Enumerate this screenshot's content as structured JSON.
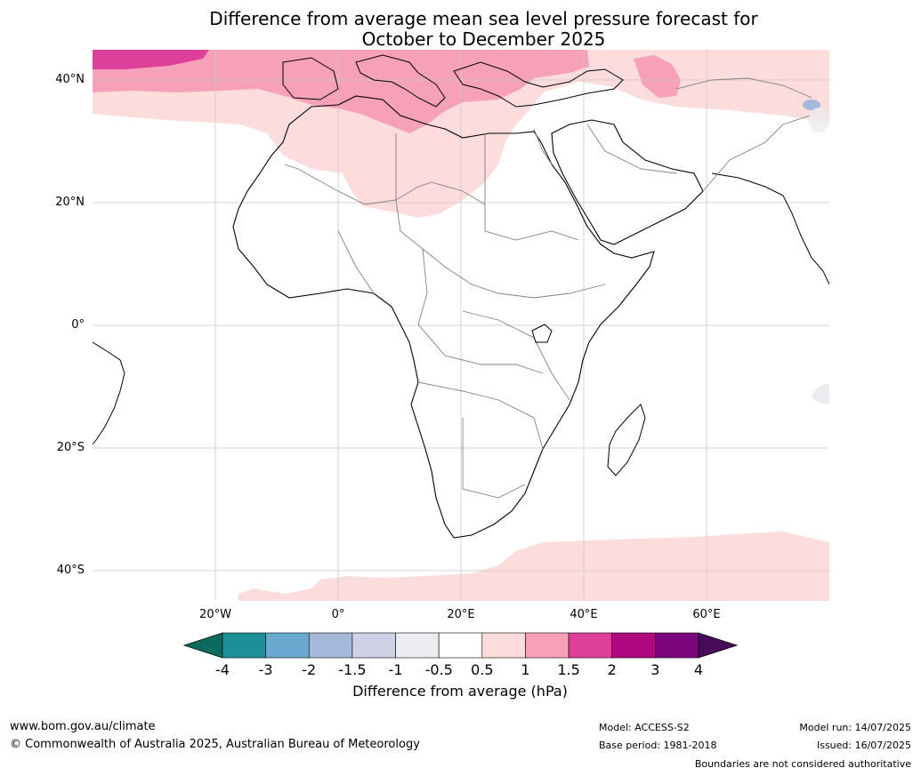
{
  "title": {
    "line1": "Difference from average mean sea level pressure forecast for",
    "line2": "October to December 2025"
  },
  "map": {
    "lat_labels": [
      "40°N",
      "20°N",
      "0°",
      "20°S",
      "40°S"
    ],
    "lon_labels": [
      "20°W",
      "0°",
      "20°E",
      "40°E",
      "60°E"
    ],
    "colors": {
      "ocean": "#ffffff",
      "land": "#ffffff",
      "coast": "#000000",
      "border": "#808080",
      "grid": "#c8c8c8"
    }
  },
  "colorbar": {
    "title": "Difference from average (hPa)",
    "ticks": [
      "-4",
      "-3",
      "-2",
      "-1.5",
      "-1",
      "-0.5",
      "0.5",
      "1",
      "1.5",
      "2",
      "3",
      "4"
    ],
    "under_color": "#0b6b5e",
    "over_color": "#4a0a5c",
    "bin_colors": [
      "#1e8f96",
      "#69a9cf",
      "#a5b8d9",
      "#cfd2e6",
      "#ecebef",
      "#ffffff",
      "#fddcdc",
      "#f7a1b9",
      "#de3f9b",
      "#b0087f",
      "#7c077d"
    ]
  },
  "footer": {
    "website": "www.bom.gov.au/climate",
    "copyright": "© Commonwealth of Australia 2025, Australian Bureau of Meteorology",
    "model": "Model: ACCESS-S2",
    "base_period": "Base period: 1981-2018",
    "model_run": "Model run: 14/07/2025",
    "issued": "Issued: 16/07/2025",
    "disclaimer": "Boundaries are not considered authoritative"
  }
}
